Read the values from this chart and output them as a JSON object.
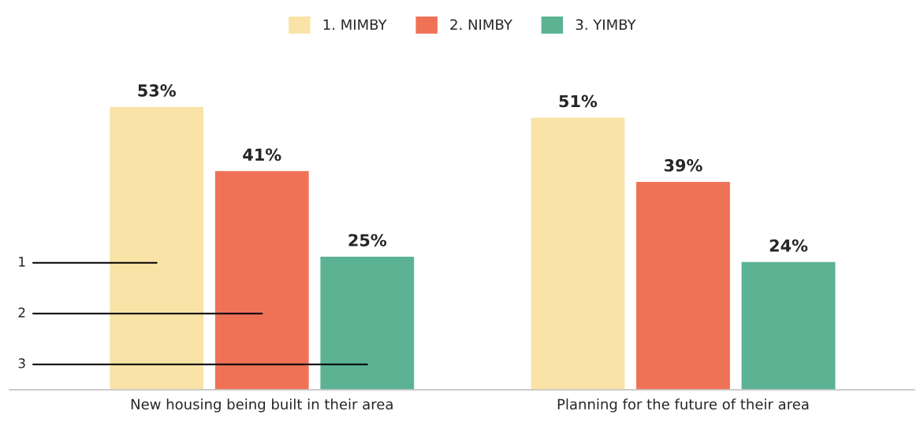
{
  "chart_data": {
    "type": "bar",
    "categories": [
      "New housing being built in their area",
      "Planning for the future of their area"
    ],
    "series": [
      {
        "name": "1. MIMBY",
        "color": "#f9e3a6",
        "values": [
          53,
          51
        ],
        "value_labels": [
          "53%",
          "51%"
        ]
      },
      {
        "name": "2. NIMBY",
        "color": "#ef7256",
        "values": [
          41,
          39
        ],
        "value_labels": [
          "41%",
          "39%"
        ]
      },
      {
        "name": "3. YIMBY",
        "color": "#5bb394",
        "values": [
          25,
          24
        ],
        "value_labels": [
          "25%",
          "24%"
        ]
      }
    ],
    "annotations": [
      "1",
      "2",
      "3"
    ],
    "legend": "top"
  }
}
